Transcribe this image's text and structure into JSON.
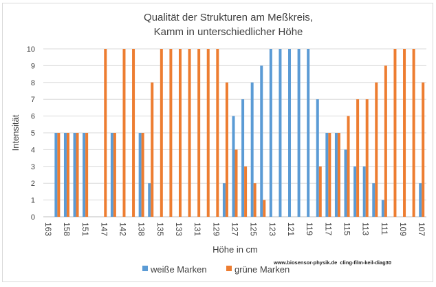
{
  "chart_data": {
    "type": "bar",
    "title": [
      "Qualität der Strukturen am Meßkreis,",
      "Kamm in unterschiedlicher Höhe"
    ],
    "xlabel": "Höhe in cm",
    "ylabel": "Intensität",
    "ylim": [
      0,
      10
    ],
    "yticks": [
      0,
      1,
      2,
      3,
      4,
      5,
      6,
      7,
      8,
      9,
      10
    ],
    "grid": true,
    "legend_position": "bottom-left",
    "categories": [
      "163",
      "",
      "158",
      "",
      "151",
      "",
      "147",
      "",
      "142",
      "",
      "138",
      "",
      "135",
      "",
      "133",
      "",
      "131",
      "",
      "129",
      "",
      "127",
      "",
      "125",
      "",
      "123",
      "",
      "121",
      "",
      "119",
      "",
      "117",
      "",
      "115",
      "",
      "113",
      "",
      "111",
      "",
      "109",
      "",
      "107"
    ],
    "series": [
      {
        "name": "weiße Marken",
        "color": "#5b9bd5",
        "values": [
          0,
          5,
          5,
          5,
          5,
          0,
          0,
          5,
          0,
          0,
          5,
          2,
          0,
          0,
          0,
          0,
          0,
          0,
          0,
          2,
          6,
          7,
          8,
          9,
          10,
          10,
          10,
          10,
          10,
          7,
          5,
          5,
          4,
          3,
          3,
          2,
          1,
          0,
          0,
          0,
          2
        ]
      },
      {
        "name": "grüne Marken",
        "color": "#ed7d31",
        "values": [
          0,
          5,
          5,
          5,
          5,
          0,
          10,
          5,
          10,
          10,
          5,
          8,
          10,
          10,
          10,
          10,
          10,
          10,
          10,
          8,
          4,
          3,
          2,
          1,
          0,
          0,
          0,
          0,
          0,
          3,
          5,
          5,
          6,
          7,
          7,
          8,
          9,
          10,
          10,
          10,
          8
        ]
      }
    ]
  },
  "watermark": "www.biosensor-physik.de  cling-film-keil-diag30"
}
